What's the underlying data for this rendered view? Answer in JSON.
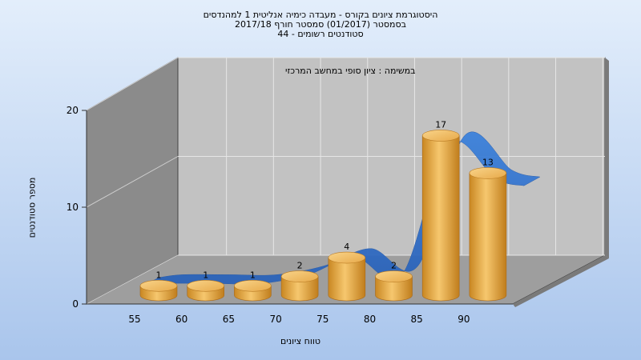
{
  "chart_data": {
    "type": "bar",
    "title_lines": [
      "היסטוגרמת ציונים בקורס - מעבדה כימיה אנליטית 1 למהנדסים",
      "בסמסטר  (01/2017)  סמסטר חורף 2017/18",
      "סטודנטים רשומים - 44"
    ],
    "annotation": "במשימה : ציון סופי במחשב המרכזי",
    "categories": [
      "55",
      "60",
      "65",
      "70",
      "75",
      "80",
      "85",
      "90"
    ],
    "values": [
      1,
      1,
      1,
      2,
      4,
      2,
      17,
      13
    ],
    "xlabel": "טווח ציונים",
    "ylabel": "מספר סטודנטים",
    "yticks": [
      0,
      10,
      20
    ],
    "ylim": [
      0,
      20
    ],
    "grid": true,
    "bar_color": "#e3a53c",
    "curve_color": "#2f6ec9"
  }
}
